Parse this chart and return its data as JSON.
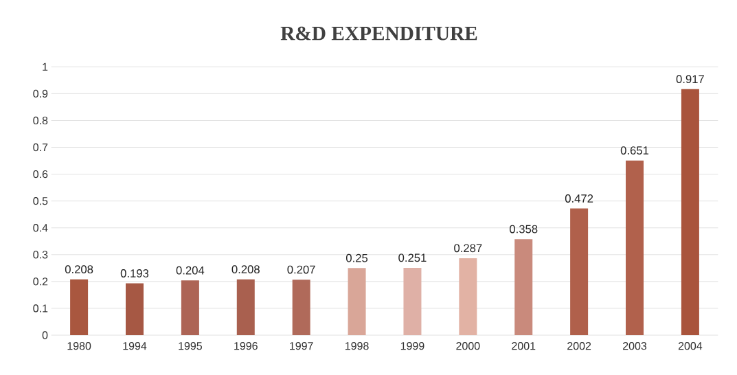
{
  "chart_data": {
    "type": "bar",
    "title": "R&D EXPENDITURE",
    "categories": [
      "1980",
      "1994",
      "1995",
      "1996",
      "1997",
      "1998",
      "1999",
      "2000",
      "2001",
      "2002",
      "2003",
      "2004"
    ],
    "values": [
      0.208,
      0.193,
      0.204,
      0.208,
      0.207,
      0.25,
      0.251,
      0.287,
      0.358,
      0.472,
      0.651,
      0.917
    ],
    "colors": [
      "#a9573f",
      "#a65844",
      "#ad6455",
      "#a9604f",
      "#b06a5a",
      "#d9a698",
      "#dfb0a6",
      "#e2b2a4",
      "#c98a7c",
      "#b0604b",
      "#b1614c",
      "#a9543c"
    ],
    "ylim": [
      0,
      1
    ],
    "yticks": [
      0,
      0.1,
      0.2,
      0.3,
      0.4,
      0.5,
      0.6,
      0.7,
      0.8,
      0.9,
      1
    ],
    "grid": "y",
    "data_labels": true
  }
}
